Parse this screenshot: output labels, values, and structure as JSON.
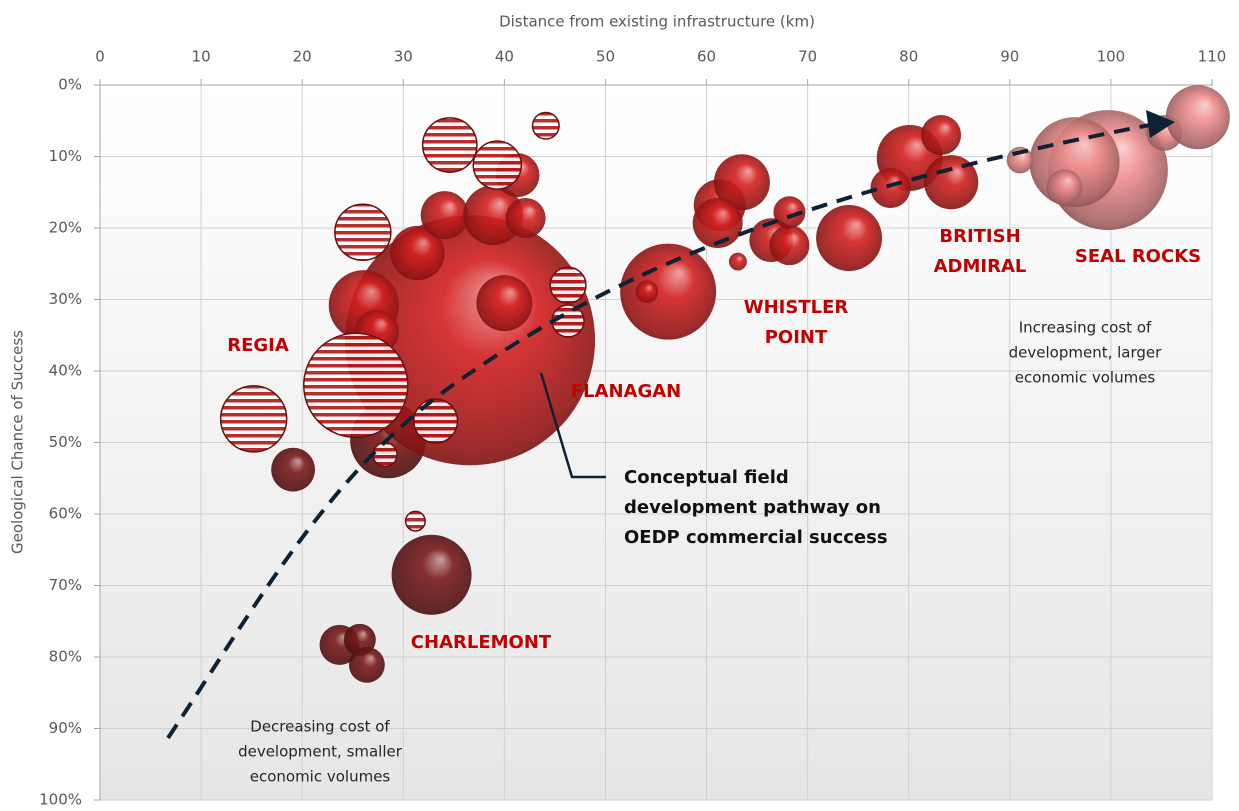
{
  "chart_data": {
    "type": "bubble",
    "x_label": "Distance from existing infrastructure (km)",
    "y_label": "Geological Chance of Success",
    "xlim": [
      0,
      110
    ],
    "xticks": [
      0,
      10,
      20,
      30,
      40,
      50,
      60,
      70,
      80,
      90,
      100,
      110
    ],
    "ylim": [
      0,
      100
    ],
    "y_inverted": true,
    "yticks": [
      {
        "value": 0,
        "label": "0%"
      },
      {
        "value": 10,
        "label": "10%"
      },
      {
        "value": 20,
        "label": "20%"
      },
      {
        "value": 30,
        "label": "30%"
      },
      {
        "value": 40,
        "label": "40%"
      },
      {
        "value": 50,
        "label": "50%"
      },
      {
        "value": 60,
        "label": "60%"
      },
      {
        "value": 70,
        "label": "70%"
      },
      {
        "value": 80,
        "label": "80%"
      },
      {
        "value": 90,
        "label": "90%"
      },
      {
        "value": 100,
        "label": "100%"
      }
    ],
    "grid": true,
    "series": [
      {
        "color": "#7a1a1a",
        "style": "solid",
        "x": [
          19.1,
          32.8,
          23.7,
          25.7,
          26.4,
          28.5
        ],
        "values": [
          53.8,
          68.5,
          78.3,
          77.6,
          81.1,
          49.7
        ],
        "sizes": [
          30,
          100,
          25,
          16,
          20,
          90
        ]
      },
      {
        "color": "#d42020",
        "style": "solid",
        "x": [
          36.6,
          26.1,
          31.4,
          27.4,
          34.1,
          38.9,
          42.1,
          41.3,
          40.0,
          56.2,
          61.3,
          63.5,
          61.1,
          63.1,
          66.4,
          68.2,
          68.2,
          74.1,
          54.1,
          80.1,
          83.2,
          84.2,
          78.2
        ],
        "values": [
          35.7,
          30.8,
          23.5,
          34.5,
          18.2,
          18.2,
          18.6,
          12.6,
          30.5,
          28.9,
          16.8,
          13.6,
          19.3,
          24.7,
          21.7,
          22.4,
          17.8,
          21.4,
          28.9,
          10.2,
          7.0,
          13.6,
          14.4
        ],
        "sizes": [
          977,
          77,
          46,
          30,
          36,
          56,
          25,
          30,
          49,
          144,
          42,
          49,
          39,
          5,
          30,
          25,
          16,
          68,
          8,
          68,
          25,
          46,
          25
        ]
      },
      {
        "color": "#f08f8f",
        "style": "solid",
        "x": [
          99.7,
          96.4,
          95.4,
          91.0,
          105.3,
          108.6
        ],
        "values": [
          11.9,
          10.8,
          14.3,
          10.5,
          6.7,
          4.5
        ],
        "sizes": [
          225,
          127,
          20,
          11,
          20,
          64
        ]
      },
      {
        "color": "#b01818",
        "style": "striped",
        "x": [
          15.2,
          25.3,
          26.0,
          34.6,
          39.3,
          44.1,
          46.3,
          46.3,
          33.2,
          28.2,
          31.2
        ],
        "values": [
          46.7,
          42.0,
          20.6,
          8.4,
          11.2,
          5.7,
          28.0,
          33.0,
          47.0,
          51.7,
          61.0
        ],
        "sizes": [
          68,
          169,
          49,
          46,
          36,
          11,
          20,
          16,
          30,
          9,
          6
        ]
      }
    ],
    "field_labels": [
      [
        "REGIA"
      ],
      [
        "FLANAGAN"
      ],
      [
        "CHARLEMONT"
      ],
      [
        "WHISTLER",
        "POINT"
      ],
      [
        "BRITISH",
        "ADMIRAL"
      ],
      [
        "SEAL ROCKS"
      ]
    ],
    "callout": [
      "Conceptual field",
      "development pathway on",
      "OEDP commercial success"
    ],
    "notes": [
      [
        "Increasing cost of",
        "development, larger",
        "economic volumes"
      ],
      [
        "Decreasing cost of",
        "development, smaller",
        "economic volumes"
      ]
    ]
  }
}
